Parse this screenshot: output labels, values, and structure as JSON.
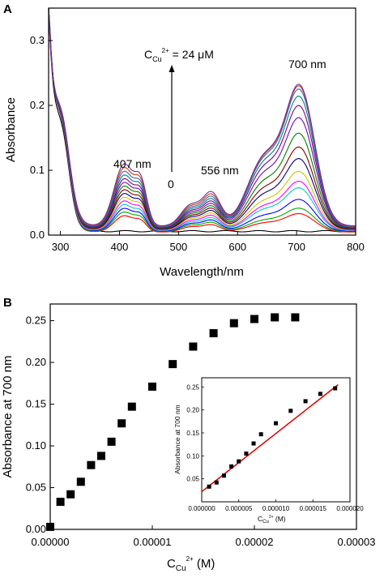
{
  "chart_data": [
    {
      "panel_label": "A",
      "type": "line",
      "xlabel": "Wavelength/nm",
      "ylabel": "Absorbance",
      "xlim": [
        280,
        800
      ],
      "ylim": [
        0,
        0.35
      ],
      "xticks": [
        "300",
        "400",
        "500",
        "600",
        "700",
        "800"
      ],
      "yticks": [
        "0.0",
        "0.1",
        "0.2",
        "0.3"
      ],
      "annotations": {
        "peak_407": "407 nm",
        "peak_556": "556 nm",
        "peak_700": "700 nm",
        "titrant_prefix": "C",
        "titrant_sub": "Cu",
        "titrant_sup": "2+",
        "titrant_value": " = 24 μM",
        "start_label": "0"
      },
      "series_colors": [
        "#000000",
        "#ff0000",
        "#00aa00",
        "#0000ff",
        "#00c8c8",
        "#ff00ff",
        "#c8c800",
        "#000080",
        "#800000",
        "#008000",
        "#6a0dad",
        "#800080",
        "#008080",
        "#4060c0",
        "#c04000",
        "#7030a0"
      ],
      "peak_heights_700": [
        0.003,
        0.033,
        0.042,
        0.057,
        0.077,
        0.088,
        0.105,
        0.127,
        0.147,
        0.171,
        0.198,
        0.219,
        0.235,
        0.247,
        0.252,
        0.254
      ]
    },
    {
      "panel_label": "B",
      "type": "scatter",
      "xlabel_prefix": "C",
      "xlabel_sub": "Cu",
      "xlabel_sup": "2+",
      "xlabel_suffix": " (M)",
      "ylabel": "Absorbance at 700 nm",
      "xlim": [
        0,
        3e-05
      ],
      "ylim": [
        0,
        0.27
      ],
      "xticks": [
        "0.00000",
        "0.00001",
        "0.00002",
        "0.00003"
      ],
      "yticks": [
        "0.00",
        "0.05",
        "0.10",
        "0.15",
        "0.20",
        "0.25"
      ],
      "x": [
        0,
        1e-06,
        2e-06,
        3e-06,
        4e-06,
        5e-06,
        6e-06,
        7e-06,
        8e-06,
        1e-05,
        1.2e-05,
        1.4e-05,
        1.6e-05,
        1.8e-05,
        2e-05,
        2.2e-05,
        2.4e-05
      ],
      "y": [
        0.003,
        0.033,
        0.042,
        0.057,
        0.077,
        0.088,
        0.105,
        0.127,
        0.147,
        0.171,
        0.198,
        0.219,
        0.235,
        0.247,
        0.252,
        0.254,
        0.254
      ],
      "inset": {
        "type": "scatter",
        "xlabel_prefix": "C",
        "xlabel_sub": "Cu",
        "xlabel_sup": "2+",
        "xlabel_suffix": " (M)",
        "ylabel": "Absorbance at 700 nm",
        "xlim": [
          0,
          2e-05
        ],
        "ylim": [
          0.0,
          0.27
        ],
        "xticks": [
          "0.000000",
          "0.000005",
          "0.000010",
          "0.000015",
          "0.000020"
        ],
        "yticks": [
          "0.05",
          "0.10",
          "0.15",
          "0.20",
          "0.25"
        ],
        "x": [
          1e-06,
          2e-06,
          3e-06,
          4e-06,
          5e-06,
          6e-06,
          7e-06,
          8e-06,
          1e-05,
          1.2e-05,
          1.4e-05,
          1.6e-05,
          1.8e-05
        ],
        "y": [
          0.033,
          0.042,
          0.057,
          0.077,
          0.088,
          0.105,
          0.127,
          0.147,
          0.171,
          0.198,
          0.219,
          0.235,
          0.247
        ],
        "fit_line": {
          "x": [
            0,
            1.84e-05
          ],
          "y": [
            0.022,
            0.255
          ],
          "color": "#e00000"
        }
      }
    }
  ]
}
